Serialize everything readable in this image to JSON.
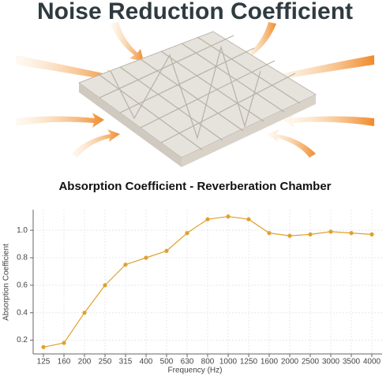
{
  "header": {
    "title": "Noise Reduction Coefficient"
  },
  "chart_data": {
    "type": "line",
    "title": "Absorption Coefficient - Reverberation Chamber",
    "x_label": "Frequency (Hz)",
    "y_label": "Absorption Coefficient",
    "categories": [
      "125",
      "160",
      "200",
      "250",
      "315",
      "400",
      "500",
      "630",
      "800",
      "1000",
      "1250",
      "1600",
      "2000",
      "2500",
      "3000",
      "3500",
      "4000"
    ],
    "values": [
      0.15,
      0.18,
      0.4,
      0.6,
      0.75,
      0.8,
      0.85,
      0.98,
      1.08,
      1.1,
      1.08,
      0.98,
      0.96,
      0.97,
      0.99,
      0.98,
      0.97
    ],
    "color": "#e0a02c",
    "ylim": [
      0.1,
      1.15
    ],
    "yticks": [
      0.2,
      0.4,
      0.6,
      0.8,
      {
        "value": 1,
        "label": "1.0"
      }
    ],
    "grid": true
  }
}
